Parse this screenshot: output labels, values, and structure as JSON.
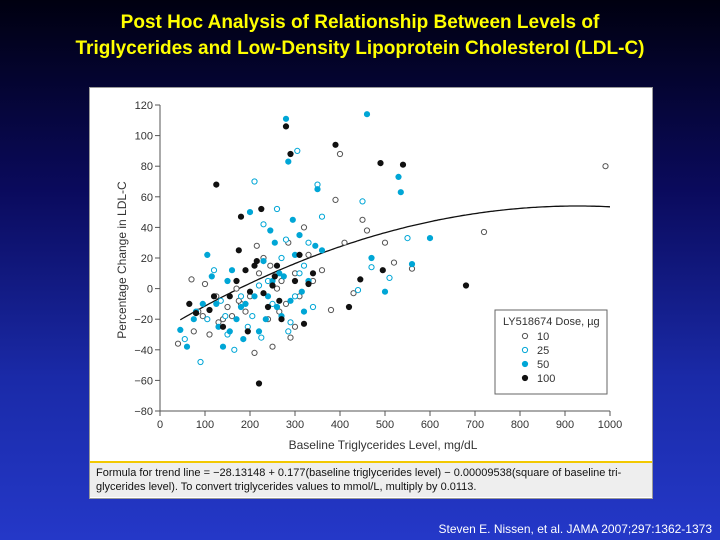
{
  "slide": {
    "title_line1": "Post Hoc Analysis of Relationship Between Levels of",
    "title_line2": "Triglycerides and Low-Density Lipoprotein Cholesterol (LDL-C)",
    "footnote_line1": "Formula for trend line = −28.13148 + 0.177(baseline triglycerides level) − 0.00009538(square of baseline tri-",
    "footnote_line2": "glycerides level). To convert triglycerides values to mmol/L, multiply by 0.0113.",
    "citation": "Steven E. Nissen, et al. JAMA 2007;297:1362-1373"
  },
  "colors": {
    "title": "#ffff00",
    "dose_10": "#ffffff",
    "dose_25": "#ffffff",
    "dose_50": "#00a6d6",
    "dose_100": "#111111",
    "dose_25_stroke": "#00a6d6",
    "dose_10_stroke": "#555555"
  },
  "chart_data": {
    "type": "scatter",
    "xlabel": "Baseline Triglycerides Level, mg/dL",
    "ylabel": "Percentage Change in LDL-C",
    "xlim": [
      0,
      1000
    ],
    "ylim": [
      -80,
      120
    ],
    "xticks": [
      0,
      100,
      200,
      300,
      400,
      500,
      600,
      700,
      800,
      900,
      1000
    ],
    "yticks": [
      -80,
      -60,
      -40,
      -20,
      0,
      20,
      40,
      60,
      80,
      100,
      120
    ],
    "grid": false,
    "legend": {
      "title": "LY518674 Dose, µg",
      "placement": "bottom-right"
    },
    "trend_line": {
      "intercept": -28.13148,
      "b1": 0.177,
      "b2": -9.538e-05,
      "x_range": [
        45,
        1000
      ]
    },
    "series": [
      {
        "name": "10",
        "marker": "open-dark",
        "points": [
          [
            40,
            -36
          ],
          [
            70,
            6
          ],
          [
            85,
            -15
          ],
          [
            95,
            -18
          ],
          [
            100,
            3
          ],
          [
            110,
            -30
          ],
          [
            125,
            -5
          ],
          [
            140,
            -20
          ],
          [
            150,
            -12
          ],
          [
            160,
            -18
          ],
          [
            170,
            0
          ],
          [
            180,
            -10
          ],
          [
            190,
            -15
          ],
          [
            200,
            -5
          ],
          [
            210,
            -42
          ],
          [
            215,
            28
          ],
          [
            220,
            10
          ],
          [
            230,
            20
          ],
          [
            240,
            -20
          ],
          [
            250,
            -38
          ],
          [
            260,
            0
          ],
          [
            270,
            5
          ],
          [
            280,
            -10
          ],
          [
            285,
            30
          ],
          [
            290,
            -32
          ],
          [
            300,
            10
          ],
          [
            310,
            -5
          ],
          [
            330,
            22
          ],
          [
            340,
            5
          ],
          [
            360,
            12
          ],
          [
            380,
            -14
          ],
          [
            390,
            58
          ],
          [
            400,
            88
          ],
          [
            410,
            30
          ],
          [
            430,
            -3
          ],
          [
            450,
            45
          ],
          [
            460,
            38
          ],
          [
            500,
            30
          ],
          [
            520,
            17
          ],
          [
            560,
            13
          ],
          [
            720,
            37
          ],
          [
            990,
            80
          ],
          [
            75,
            -28
          ],
          [
            130,
            -22
          ],
          [
            175,
            -8
          ],
          [
            245,
            15
          ],
          [
            265,
            -15
          ],
          [
            300,
            -25
          ],
          [
            320,
            40
          ]
        ]
      },
      {
        "name": "25",
        "marker": "open-cyan",
        "points": [
          [
            55,
            -33
          ],
          [
            90,
            -48
          ],
          [
            105,
            -20
          ],
          [
            120,
            12
          ],
          [
            135,
            -8
          ],
          [
            150,
            -30
          ],
          [
            165,
            -40
          ],
          [
            180,
            -5
          ],
          [
            195,
            -25
          ],
          [
            205,
            -18
          ],
          [
            210,
            70
          ],
          [
            220,
            2
          ],
          [
            230,
            42
          ],
          [
            240,
            5
          ],
          [
            250,
            -10
          ],
          [
            260,
            52
          ],
          [
            270,
            20
          ],
          [
            280,
            32
          ],
          [
            290,
            -22
          ],
          [
            300,
            -5
          ],
          [
            310,
            10
          ],
          [
            320,
            15
          ],
          [
            330,
            30
          ],
          [
            340,
            -12
          ],
          [
            350,
            68
          ],
          [
            360,
            47
          ],
          [
            440,
            -1
          ],
          [
            450,
            57
          ],
          [
            470,
            14
          ],
          [
            510,
            7
          ],
          [
            550,
            33
          ],
          [
            145,
            -18
          ],
          [
            225,
            -32
          ],
          [
            285,
            -28
          ],
          [
            305,
            90
          ]
        ]
      },
      {
        "name": "50",
        "marker": "filled-cyan",
        "points": [
          [
            45,
            -27
          ],
          [
            60,
            -38
          ],
          [
            80,
            -15
          ],
          [
            95,
            -10
          ],
          [
            105,
            22
          ],
          [
            115,
            8
          ],
          [
            130,
            -25
          ],
          [
            140,
            -38
          ],
          [
            150,
            5
          ],
          [
            160,
            12
          ],
          [
            170,
            -20
          ],
          [
            180,
            -12
          ],
          [
            190,
            -10
          ],
          [
            200,
            50
          ],
          [
            210,
            -5
          ],
          [
            220,
            -28
          ],
          [
            230,
            18
          ],
          [
            240,
            -5
          ],
          [
            250,
            5
          ],
          [
            255,
            30
          ],
          [
            260,
            -12
          ],
          [
            265,
            10
          ],
          [
            270,
            -18
          ],
          [
            280,
            111
          ],
          [
            285,
            83
          ],
          [
            290,
            -8
          ],
          [
            295,
            45
          ],
          [
            300,
            22
          ],
          [
            310,
            35
          ],
          [
            320,
            -15
          ],
          [
            330,
            5
          ],
          [
            345,
            28
          ],
          [
            350,
            65
          ],
          [
            360,
            25
          ],
          [
            460,
            114
          ],
          [
            470,
            20
          ],
          [
            500,
            -2
          ],
          [
            530,
            73
          ],
          [
            535,
            63
          ],
          [
            560,
            16
          ],
          [
            600,
            33
          ],
          [
            75,
            -20
          ],
          [
            125,
            -10
          ],
          [
            155,
            -28
          ],
          [
            185,
            -33
          ],
          [
            235,
            -20
          ],
          [
            245,
            38
          ],
          [
            275,
            8
          ],
          [
            315,
            -2
          ]
        ]
      },
      {
        "name": "100",
        "marker": "filled-dark",
        "points": [
          [
            65,
            -10
          ],
          [
            80,
            -16
          ],
          [
            110,
            -14
          ],
          [
            120,
            -5
          ],
          [
            125,
            68
          ],
          [
            140,
            -25
          ],
          [
            155,
            -5
          ],
          [
            170,
            5
          ],
          [
            175,
            25
          ],
          [
            180,
            47
          ],
          [
            190,
            12
          ],
          [
            200,
            -2
          ],
          [
            210,
            15
          ],
          [
            215,
            18
          ],
          [
            220,
            -62
          ],
          [
            225,
            52
          ],
          [
            230,
            -3
          ],
          [
            240,
            -12
          ],
          [
            250,
            2
          ],
          [
            255,
            8
          ],
          [
            260,
            15
          ],
          [
            270,
            -20
          ],
          [
            280,
            106
          ],
          [
            290,
            88
          ],
          [
            300,
            5
          ],
          [
            310,
            22
          ],
          [
            320,
            -23
          ],
          [
            340,
            10
          ],
          [
            390,
            94
          ],
          [
            420,
            -12
          ],
          [
            445,
            6
          ],
          [
            490,
            82
          ],
          [
            495,
            12
          ],
          [
            540,
            81
          ],
          [
            680,
            2
          ],
          [
            195,
            -28
          ],
          [
            265,
            -8
          ],
          [
            330,
            3
          ]
        ]
      }
    ]
  }
}
